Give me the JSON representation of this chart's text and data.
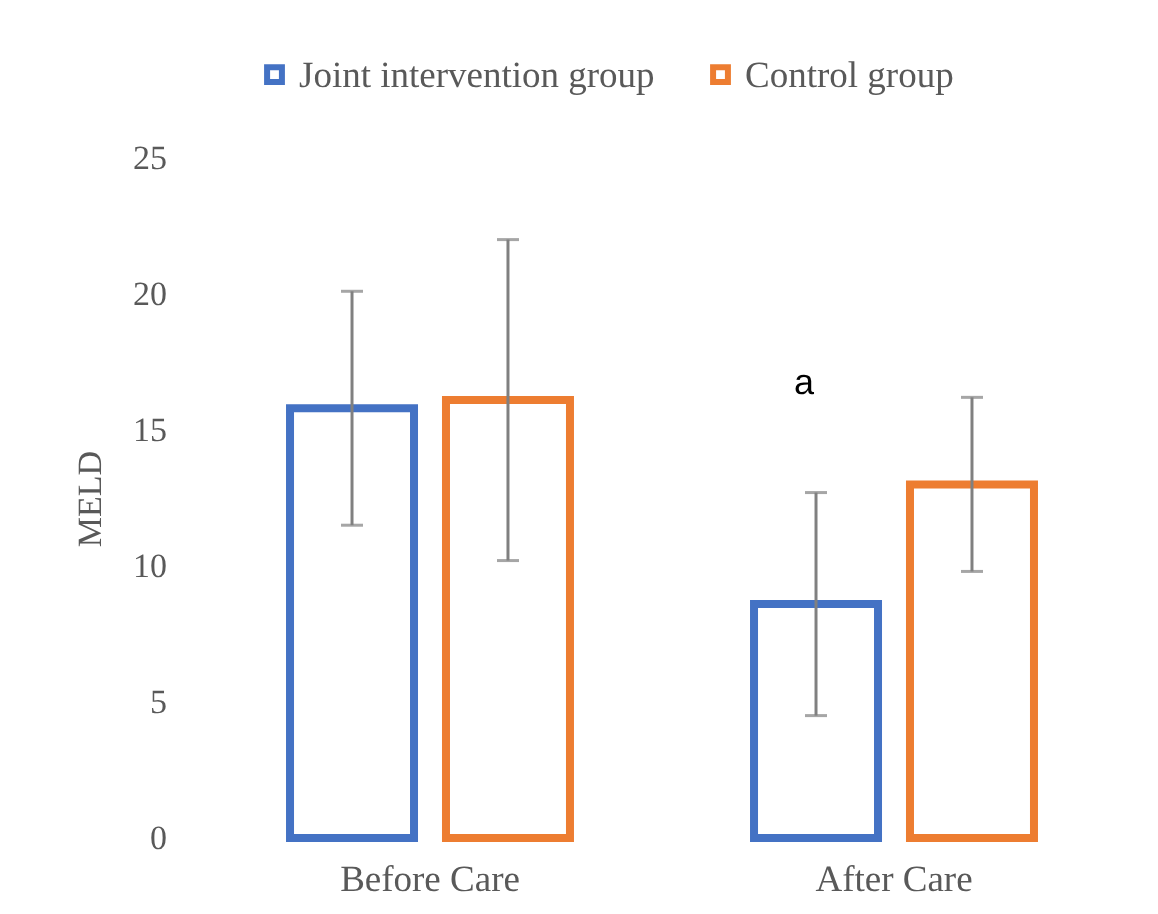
{
  "chart_data": {
    "type": "bar",
    "ylabel": "MELD",
    "categories": [
      "Before Care",
      "After Care"
    ],
    "series": [
      {
        "name": "Joint intervention group",
        "color": "#4472c4",
        "values": [
          15.8,
          8.6
        ],
        "errors": [
          4.3,
          4.1
        ]
      },
      {
        "name": "Control group",
        "color": "#ed7d31",
        "values": [
          16.1,
          13.0
        ],
        "errors": [
          5.9,
          3.2
        ]
      }
    ],
    "ylim": [
      0,
      25
    ],
    "yticks": [
      0,
      5,
      10,
      15,
      20,
      25
    ],
    "legend": "top",
    "annotations": [
      "a"
    ]
  }
}
